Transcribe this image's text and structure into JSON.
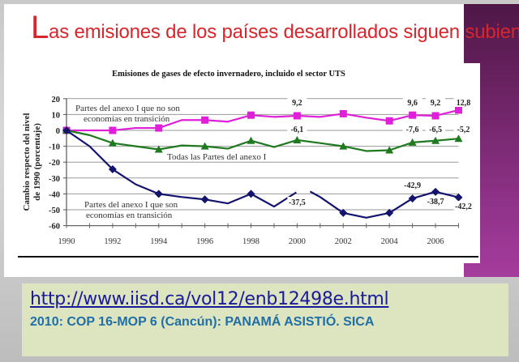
{
  "slide": {
    "title_first_letter": "L",
    "title_rest": "as emisiones de los países desarrollados siguen subiendo",
    "link": "http://www.iisd.ca/vol12/enb12498e.html",
    "subtitle": "2010: COP 16-MOP 6 (Cancún): PANAMÁ ASISTIÓ. SICA",
    "colors": {
      "title": "#d7262c",
      "purple_band": "#8c3186",
      "info_box": "#dde4c0",
      "link": "#1a1a9c",
      "subtitle": "#1f6fa6"
    }
  },
  "chart_data": {
    "type": "line",
    "title": "Emisiones de gases de efecto invernadero, incluido el sector UTS",
    "xlabel": "",
    "ylabel": "Cambio respecto del nivel de 1990 (porcentaje)",
    "ylabel_lines": [
      "Cambio respecto del nivel",
      "de 1990 (porcentaje)"
    ],
    "ylim": [
      -60,
      20
    ],
    "yticks": [
      20,
      10,
      0,
      -10,
      -20,
      -30,
      -40,
      -50,
      -60
    ],
    "xticks": [
      1990,
      1992,
      1994,
      1996,
      1998,
      2000,
      2002,
      2004,
      2006
    ],
    "x": [
      1990,
      1991,
      1992,
      1993,
      1994,
      1995,
      1996,
      1997,
      1998,
      1999,
      2000,
      2001,
      2002,
      2003,
      2004,
      2005,
      2006,
      2007
    ],
    "grid": true,
    "series": [
      {
        "name": "Partes del anexo I que no son economías en transición",
        "label_lines": [
          "Partes del anexo I que no son",
          "economías en transición"
        ],
        "color": "#e020d8",
        "marker": "square",
        "values": [
          0,
          0,
          0,
          1.5,
          1.5,
          6.5,
          6.5,
          5.5,
          9.6,
          8.5,
          9.2,
          8.5,
          10.5,
          8,
          6,
          9.6,
          9.2,
          12.8
        ],
        "markers_at": [
          1990,
          1992,
          1994,
          1996,
          1998,
          2000,
          2002,
          2004,
          2005,
          2006,
          2007
        ],
        "annotations": [
          {
            "x": 2000,
            "text": "9,2"
          },
          {
            "x": 2005,
            "text": "9,6"
          },
          {
            "x": 2006,
            "text": "9,2"
          },
          {
            "x": 2007,
            "text": "12,8"
          }
        ]
      },
      {
        "name": "Todas las Partes del anexo I",
        "label_lines": [
          "Todas las Partes del anexo I"
        ],
        "color": "#1f7a1f",
        "marker": "triangle",
        "values": [
          0,
          -3,
          -8,
          -10,
          -12,
          -9.5,
          -10,
          -11.5,
          -6.5,
          -10.5,
          -6.1,
          -8,
          -10,
          -13,
          -12.5,
          -7.6,
          -6.5,
          -5.2
        ],
        "markers_at": [
          1990,
          1992,
          1994,
          1996,
          1998,
          2000,
          2002,
          2004,
          2005,
          2006,
          2007
        ],
        "annotations": [
          {
            "x": 2000,
            "text": "-6,1"
          },
          {
            "x": 2005,
            "text": "-7,6"
          },
          {
            "x": 2006,
            "text": "-6,5"
          },
          {
            "x": 2007,
            "text": "-5,2"
          }
        ]
      },
      {
        "name": "Partes del anexo I que son economías en transición",
        "label_lines": [
          "Partes del anexo I que son",
          "economías en transición"
        ],
        "color": "#14146e",
        "marker": "diamond",
        "values": [
          0,
          -10,
          -24.5,
          -34,
          -40,
          -42,
          -43.5,
          -46,
          -40,
          -48,
          -37.5,
          -42,
          -52,
          -55,
          -52,
          -42.9,
          -38.7,
          -42.2
        ],
        "markers_at": [
          1990,
          1992,
          1994,
          1996,
          1998,
          2002,
          2004,
          2005,
          2006,
          2007
        ],
        "annotations": [
          {
            "x": 2000,
            "text": "-37,5"
          },
          {
            "x": 2005,
            "text": "-42,9"
          },
          {
            "x": 2006,
            "text": "-38,7"
          },
          {
            "x": 2007,
            "text": "-42,2"
          }
        ]
      }
    ]
  }
}
